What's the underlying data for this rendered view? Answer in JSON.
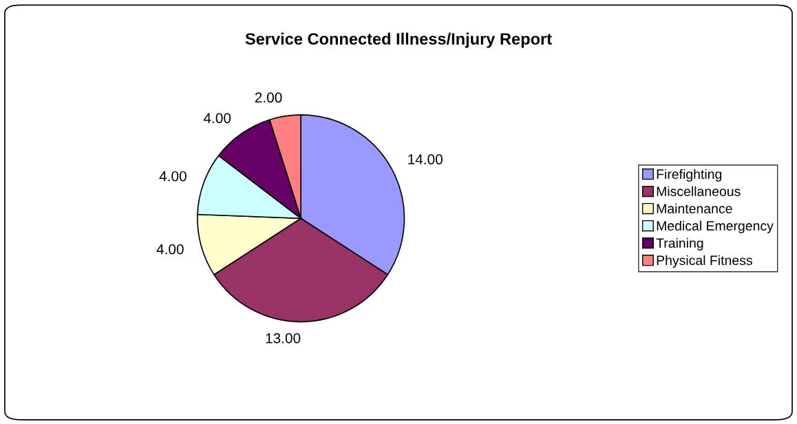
{
  "chart_data": {
    "type": "pie",
    "title": "Service Connected Illness/Injury Report",
    "categories": [
      "Firefighting",
      "Miscellaneous",
      "Maintenance",
      "Medical Emergency",
      "Training",
      "Physical Fitness"
    ],
    "values": [
      14,
      13,
      4,
      4,
      4,
      2
    ],
    "value_labels": [
      "14.00",
      "13.00",
      "4.00",
      "4.00",
      "4.00",
      "2.00"
    ],
    "colors": [
      "#9999ff",
      "#993366",
      "#ffffcc",
      "#ccffff",
      "#660066",
      "#ff8080"
    ],
    "legend": "right"
  }
}
